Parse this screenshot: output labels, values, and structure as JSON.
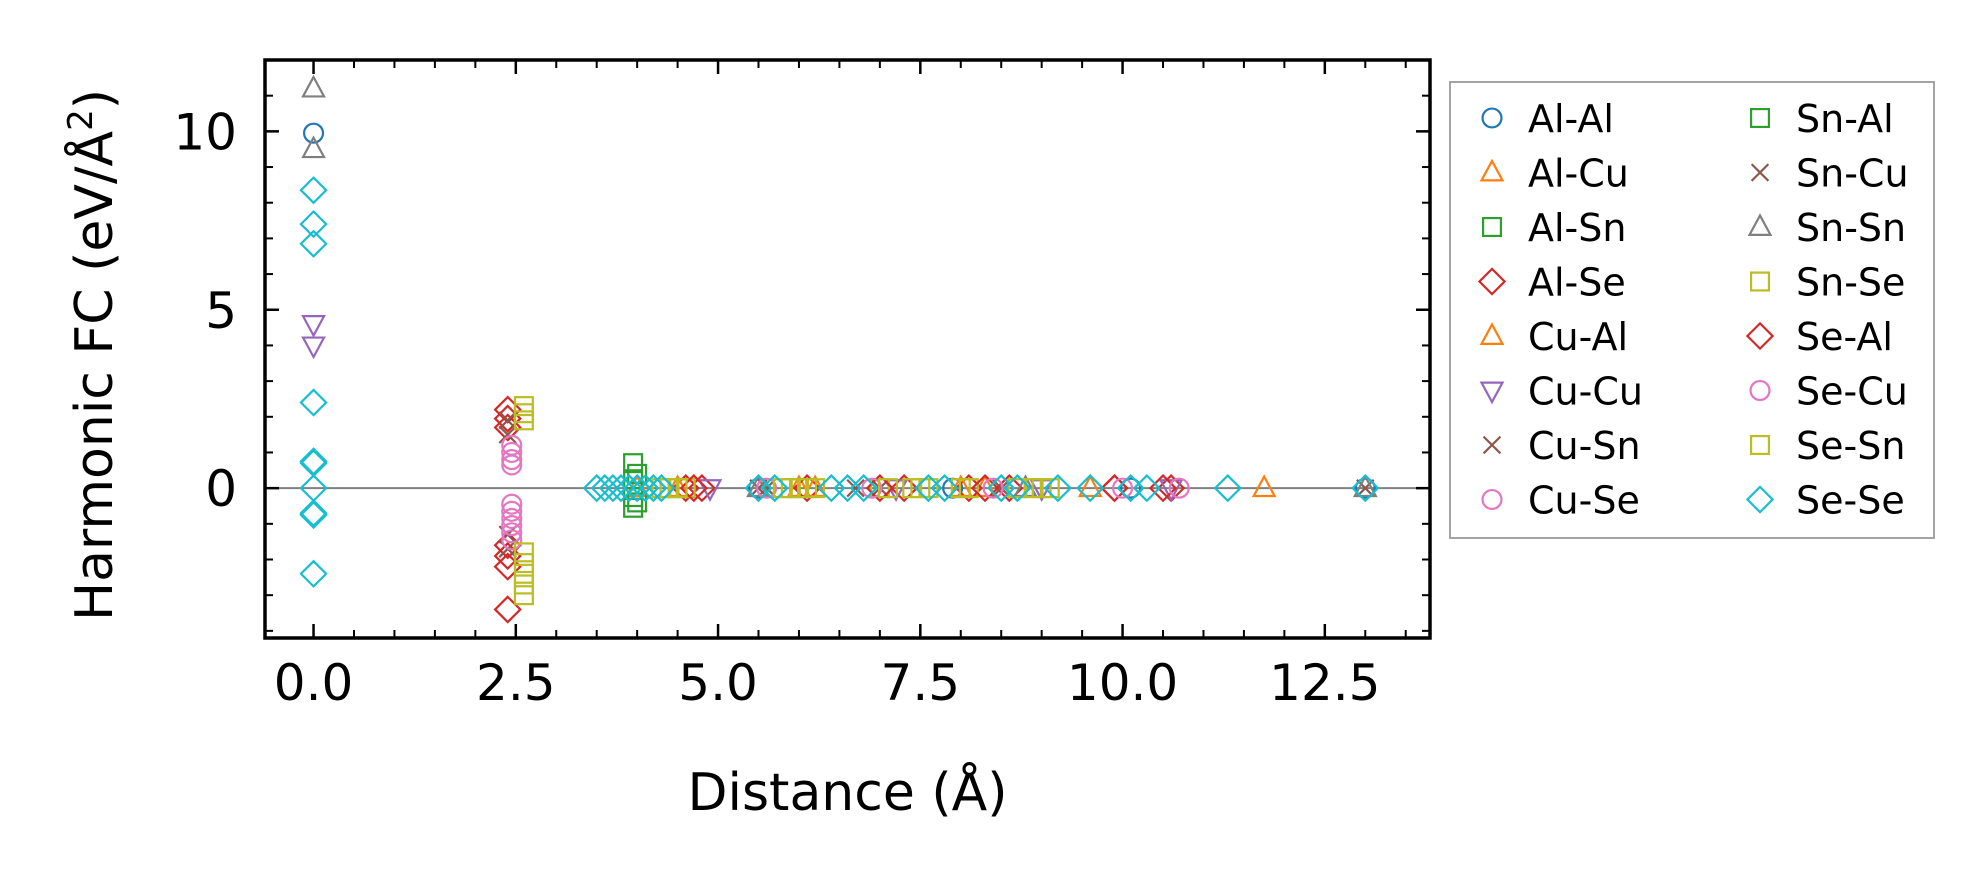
{
  "chart_data": {
    "type": "scatter",
    "title": "",
    "xlabel": "Distance (Å)",
    "ylabel_main": "Harmonic FC (eV/Å",
    "ylabel_sup": "2",
    "ylabel_end": ")",
    "xlim": [
      -0.6,
      13.8
    ],
    "ylim": [
      -4.2,
      12.0
    ],
    "xticks": [
      0.0,
      2.5,
      5.0,
      7.5,
      10.0,
      12.5
    ],
    "xtick_labels": [
      "0.0",
      "2.5",
      "5.0",
      "7.5",
      "10.0",
      "12.5"
    ],
    "yticks": [
      0,
      5,
      10
    ],
    "ytick_labels": [
      "0",
      "5",
      "10"
    ],
    "zero_line": true,
    "grid": false,
    "legend": {
      "position": "outside-right",
      "columns": 2
    },
    "series": [
      {
        "name": "Al-Al",
        "marker": "circle",
        "color": "#1f77b4",
        "x": [
          0.0,
          5.5,
          7.9,
          10.1,
          13.0
        ],
        "y": [
          9.95,
          0.0,
          0.0,
          0.0,
          0.0
        ]
      },
      {
        "name": "Al-Cu",
        "marker": "triangle-up",
        "color": "#ff7f0e",
        "x": [
          4.0,
          6.0,
          8.3,
          9.6,
          11.75
        ],
        "y": [
          0.0,
          0.0,
          0.0,
          0.0,
          0.0
        ]
      },
      {
        "name": "Al-Sn",
        "marker": "square",
        "color": "#2ca02c",
        "x": [
          3.95,
          3.95,
          3.95,
          3.95
        ],
        "y": [
          0.7,
          0.25,
          -0.25,
          -0.55
        ]
      },
      {
        "name": "Al-Se",
        "marker": "diamond",
        "color": "#d62728",
        "x": [
          2.4,
          2.4,
          2.4,
          2.4,
          2.4,
          2.4,
          2.4,
          4.6,
          4.8,
          6.1,
          7.3,
          8.1,
          8.6,
          9.9,
          10.6
        ],
        "y": [
          2.2,
          1.95,
          1.7,
          -1.6,
          -1.9,
          -2.2,
          -3.4,
          0.0,
          0.0,
          0.0,
          0.0,
          0.0,
          0.0,
          0.0,
          0.0
        ]
      },
      {
        "name": "Cu-Al",
        "marker": "triangle-up",
        "color": "#ff7f0e",
        "x": [
          4.5,
          6.2,
          8.0
        ],
        "y": [
          0.0,
          0.0,
          0.0
        ]
      },
      {
        "name": "Cu-Cu",
        "marker": "triangle-down",
        "color": "#9467bd",
        "x": [
          0.0,
          0.0,
          4.9,
          7.2,
          9.0,
          10.6
        ],
        "y": [
          4.6,
          4.0,
          0.0,
          0.0,
          0.0,
          0.0
        ]
      },
      {
        "name": "Cu-Sn",
        "marker": "x",
        "color": "#8c564b",
        "x": [
          2.4,
          2.4,
          2.4,
          2.4,
          5.6,
          7.0,
          13.0
        ],
        "y": [
          1.9,
          1.5,
          -1.3,
          -1.7,
          0.0,
          0.0,
          0.0
        ]
      },
      {
        "name": "Cu-Se",
        "marker": "circle",
        "color": "#e377c2",
        "x": [
          2.45,
          2.45,
          2.45,
          2.45,
          2.45,
          2.45,
          2.45,
          2.45,
          2.45,
          2.45
        ],
        "y": [
          1.2,
          1.0,
          0.8,
          0.65,
          -0.45,
          -0.65,
          -0.85,
          -1.05,
          -1.25,
          -1.45
        ]
      },
      {
        "name": "Sn-Al",
        "marker": "square",
        "color": "#2ca02c",
        "x": [
          4.0,
          4.0
        ],
        "y": [
          0.4,
          -0.4
        ]
      },
      {
        "name": "Sn-Cu",
        "marker": "x",
        "color": "#8c564b",
        "x": [
          5.5,
          6.7,
          8.5
        ],
        "y": [
          0.0,
          0.0,
          0.0
        ]
      },
      {
        "name": "Sn-Sn",
        "marker": "triangle-up",
        "color": "#7f7f7f",
        "x": [
          0.0,
          0.0,
          5.5,
          8.8,
          13.0
        ],
        "y": [
          11.2,
          9.5,
          0.0,
          0.0,
          0.0
        ]
      },
      {
        "name": "Sn-Se",
        "marker": "square",
        "color": "#bcbd22",
        "x": [
          2.6,
          2.6,
          2.6,
          2.6,
          2.6,
          2.6,
          2.6,
          2.6,
          4.4,
          4.6,
          5.9,
          6.1,
          7.0,
          7.4,
          7.6,
          8.1,
          8.9,
          9.1
        ],
        "y": [
          2.3,
          2.1,
          1.9,
          -1.8,
          -2.1,
          -2.4,
          -2.7,
          -3.0,
          0.0,
          0.0,
          0.0,
          0.0,
          0.0,
          0.0,
          0.0,
          0.0,
          0.0,
          0.0
        ]
      },
      {
        "name": "Se-Al",
        "marker": "diamond",
        "color": "#d62728",
        "x": [
          4.7,
          7.0,
          8.3,
          9.9,
          10.5
        ],
        "y": [
          0.0,
          0.0,
          0.0,
          0.0,
          0.0
        ]
      },
      {
        "name": "Se-Cu",
        "marker": "circle",
        "color": "#e377c2",
        "x": [
          5.6,
          6.9,
          8.4,
          10.0,
          10.7
        ],
        "y": [
          0.0,
          0.0,
          0.0,
          0.0,
          0.0
        ]
      },
      {
        "name": "Se-Sn",
        "marker": "square",
        "color": "#bcbd22",
        "x": [
          4.3,
          4.5,
          5.8,
          6.0,
          6.2,
          7.1,
          7.5,
          8.0,
          8.7,
          9.0
        ],
        "y": [
          0.0,
          0.0,
          0.0,
          0.0,
          0.0,
          0.0,
          0.0,
          0.0,
          0.0,
          0.0
        ]
      },
      {
        "name": "Se-Se",
        "marker": "diamond",
        "color": "#17becf",
        "x": [
          0.0,
          0.0,
          0.0,
          0.0,
          0.0,
          0.0,
          0.0,
          0.0,
          0.0,
          0.0,
          3.5,
          3.6,
          3.7,
          3.8,
          3.9,
          4.0,
          4.1,
          4.2,
          4.3,
          5.5,
          5.7,
          6.4,
          6.6,
          6.8,
          7.6,
          7.8,
          8.5,
          8.7,
          9.2,
          9.6,
          10.1,
          10.3,
          11.3,
          13.0
        ],
        "y": [
          8.35,
          7.4,
          6.85,
          2.4,
          0.75,
          0.7,
          -0.7,
          -0.75,
          -2.4,
          0.0,
          0.0,
          0.0,
          0.0,
          0.0,
          0.0,
          0.0,
          0.0,
          0.0,
          0.0,
          0.0,
          0.0,
          0.0,
          0.0,
          0.0,
          0.0,
          0.0,
          0.0,
          0.0,
          0.0,
          0.0,
          0.0,
          0.0,
          0.0,
          0.0
        ]
      }
    ]
  }
}
